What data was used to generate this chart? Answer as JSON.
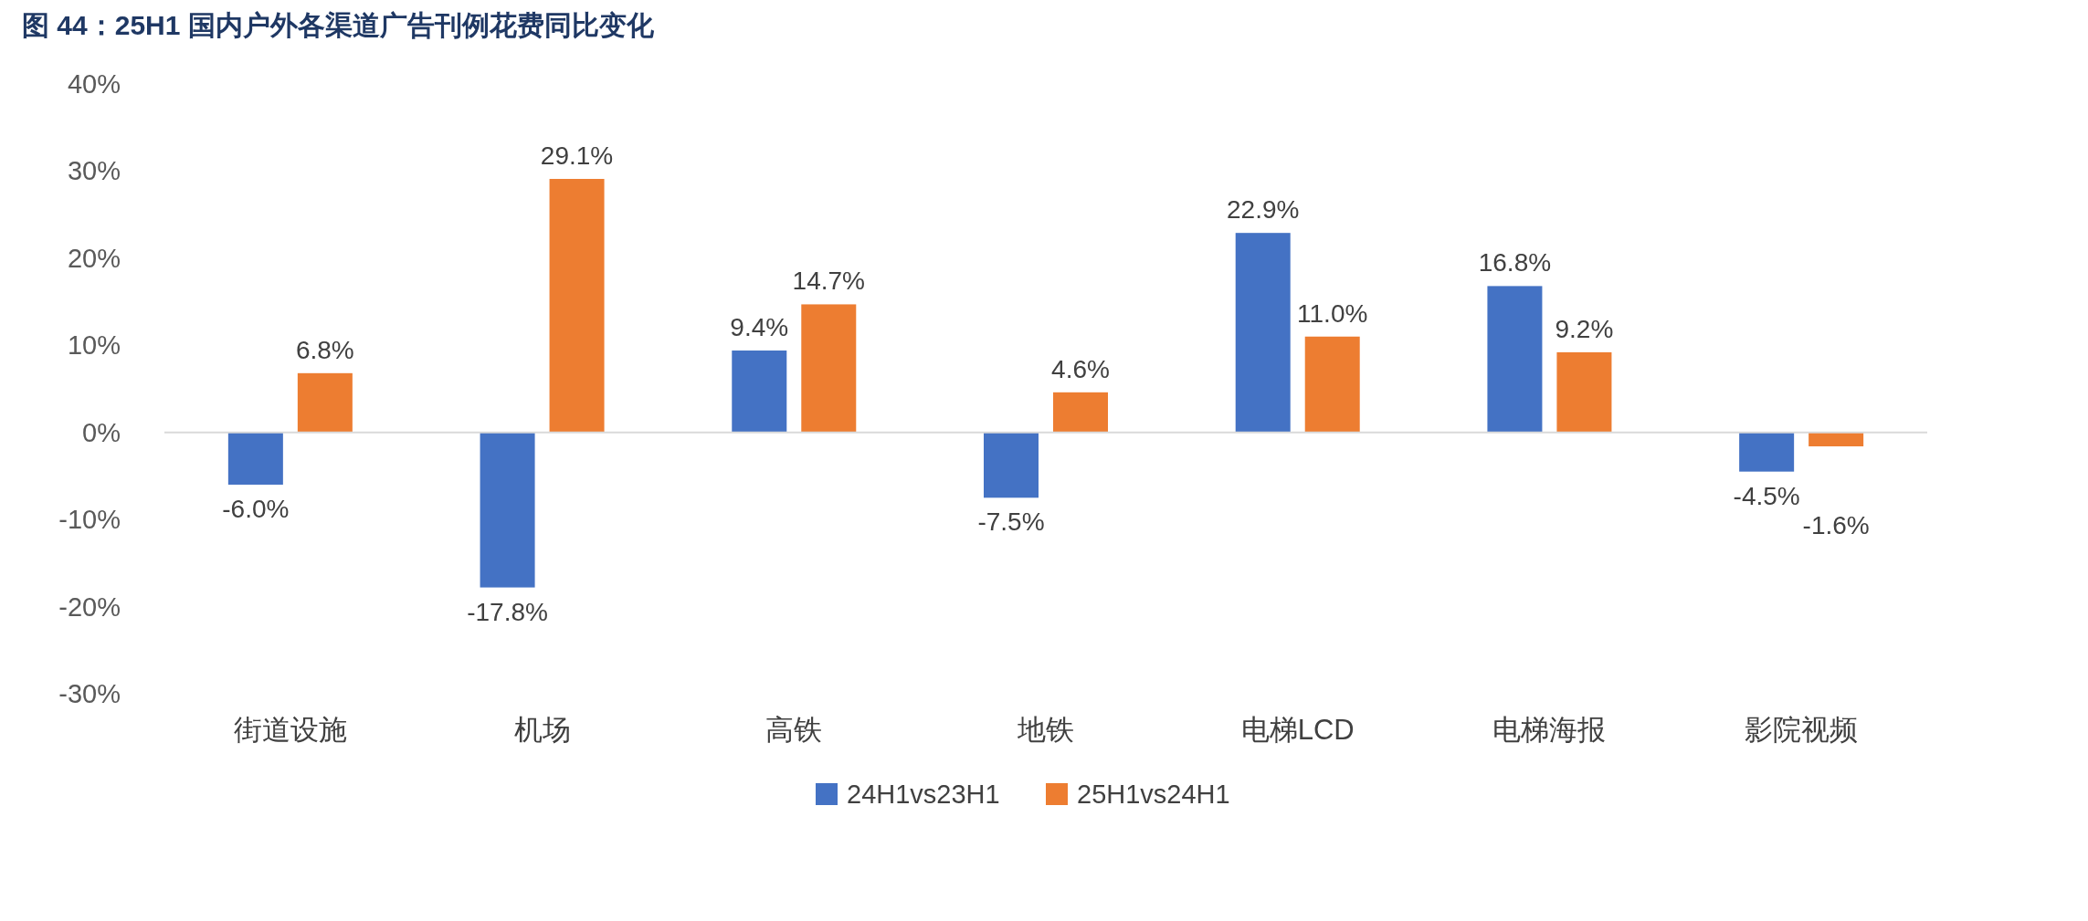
{
  "chart_data": {
    "type": "bar",
    "title": "图 44：25H1 国内户外各渠道广告刊例花费同比变化",
    "categories": [
      "街道设施",
      "机场",
      "高铁",
      "地铁",
      "电梯LCD",
      "电梯海报",
      "影院视频"
    ],
    "series": [
      {
        "name": "24H1vs23H1",
        "color": "#4472c4",
        "values": [
          -6.0,
          -17.8,
          9.4,
          -7.5,
          22.9,
          16.8,
          -4.5
        ],
        "value_labels": [
          "-6.0%",
          "-17.8%",
          "9.4%",
          "-7.5%",
          "22.9%",
          "16.8%",
          "-4.5%"
        ]
      },
      {
        "name": "25H1vs24H1",
        "color": "#ed7d31",
        "values": [
          6.8,
          29.1,
          14.7,
          4.6,
          11.0,
          9.2,
          -1.6
        ],
        "value_labels": [
          "6.8%",
          "29.1%",
          "14.7%",
          "4.6%",
          "11.0%",
          "9.2%",
          "-1.6%"
        ]
      }
    ],
    "ylim": [
      -30,
      40
    ],
    "yticks": [
      {
        "value": -30,
        "label": "-30%"
      },
      {
        "value": -20,
        "label": "-20%"
      },
      {
        "value": -10,
        "label": "-10%"
      },
      {
        "value": 0,
        "label": "0%"
      },
      {
        "value": 10,
        "label": "10%"
      },
      {
        "value": 20,
        "label": "20%"
      },
      {
        "value": 30,
        "label": "30%"
      },
      {
        "value": 40,
        "label": "40%"
      }
    ],
    "legend": "bottom"
  }
}
